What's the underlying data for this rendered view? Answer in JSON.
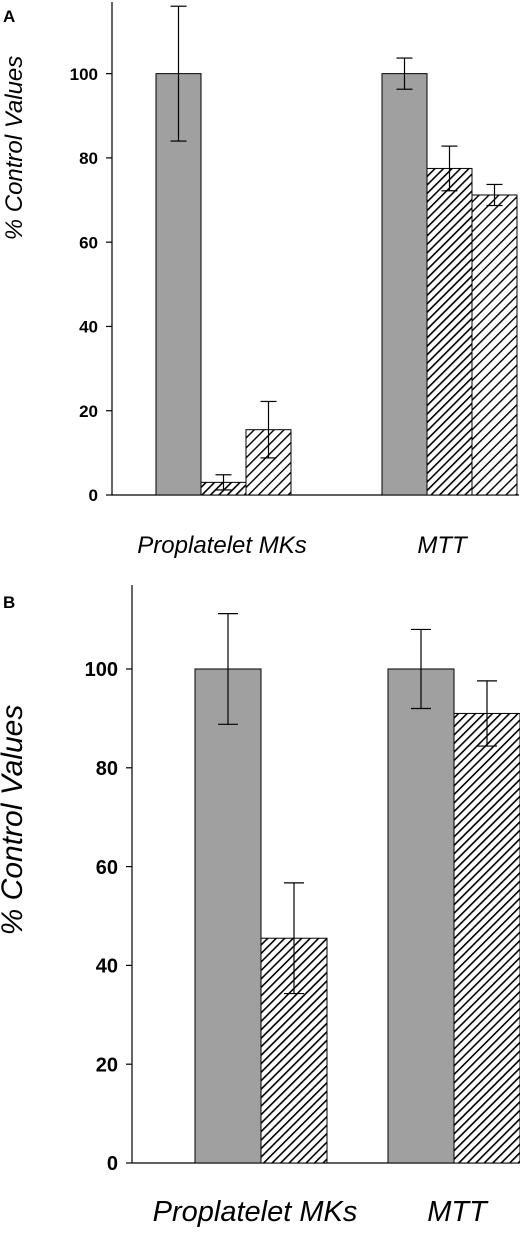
{
  "chart_data": [
    {
      "panel": "A",
      "type": "bar",
      "ylabel": "% Control Values",
      "ylim": [
        0,
        117
      ],
      "yticks": [
        0,
        20,
        40,
        60,
        80,
        100
      ],
      "categories": [
        "Proplatelet MKs",
        "MTT"
      ],
      "series": [
        {
          "pattern": "solid-gray",
          "values": [
            100,
            100
          ],
          "errors": [
            16,
            3.7
          ]
        },
        {
          "pattern": "hatch-dense",
          "values": [
            3,
            77.5
          ],
          "errors": [
            1.8,
            5.3
          ]
        },
        {
          "pattern": "hatch-sparse",
          "values": [
            15.5,
            71.2
          ],
          "errors": [
            6.7,
            2.5
          ]
        }
      ],
      "colors": {
        "bar_fill": "#a0a0a0",
        "stroke": "#000000"
      }
    },
    {
      "panel": "B",
      "type": "bar",
      "ylabel": "% Control Values",
      "ylim": [
        0,
        117
      ],
      "yticks": [
        0,
        20,
        40,
        60,
        80,
        100
      ],
      "categories": [
        "Proplatelet MKs",
        "MTT"
      ],
      "series": [
        {
          "pattern": "solid-gray",
          "values": [
            100,
            100
          ],
          "errors": [
            11.2,
            8
          ]
        },
        {
          "pattern": "hatch-dense",
          "values": [
            45.5,
            91
          ],
          "errors": [
            11.2,
            6.6
          ]
        }
      ],
      "colors": {
        "bar_fill": "#a0a0a0",
        "stroke": "#000000"
      }
    }
  ]
}
